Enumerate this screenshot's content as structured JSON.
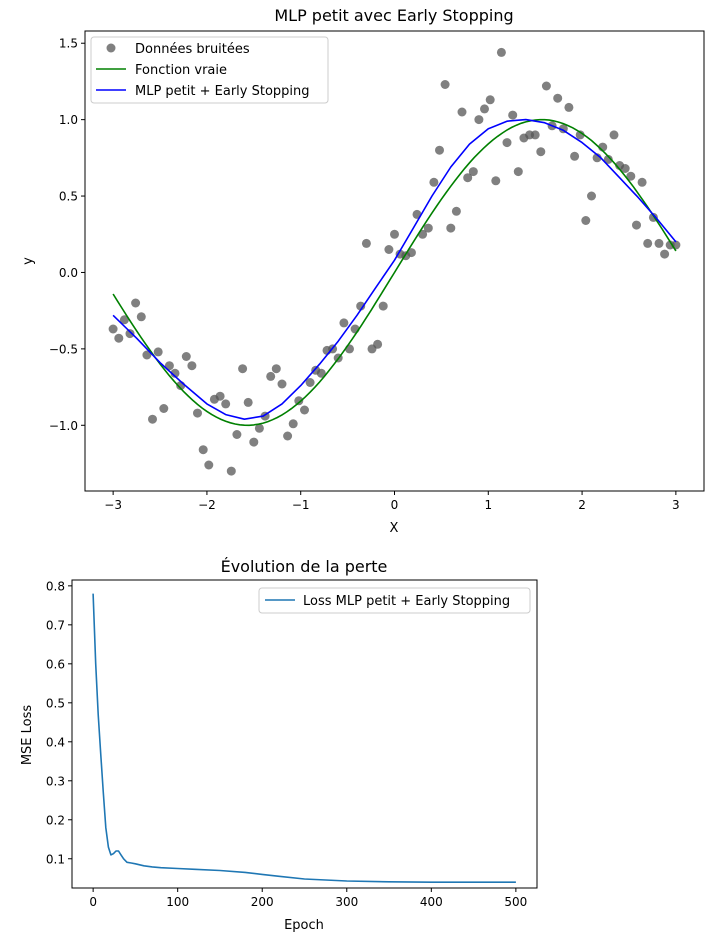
{
  "chart_data": [
    {
      "type": "scatter",
      "title": "MLP petit avec Early Stopping",
      "xlabel": "X",
      "ylabel": "y",
      "xlim": [
        -3.3,
        3.3
      ],
      "ylim": [
        -1.43,
        1.58
      ],
      "xticks": [
        -3,
        -2,
        -1,
        0,
        1,
        2,
        3
      ],
      "xtick_labels": [
        "−3",
        "−2",
        "−1",
        "0",
        "1",
        "2",
        "3"
      ],
      "yticks": [
        -1.0,
        -0.5,
        0.0,
        0.5,
        1.0,
        1.5
      ],
      "ytick_labels": [
        "−1.0",
        "−0.5",
        "0.0",
        "0.5",
        "1.0",
        "1.5"
      ],
      "legend_position": "top-left",
      "colors": {
        "points": "#555555",
        "true_fn": "#008000",
        "mlp": "#0000ff"
      },
      "series": [
        {
          "name": "Données bruitées",
          "kind": "scatter",
          "x": [
            -3.0,
            -2.94,
            -2.88,
            -2.82,
            -2.76,
            -2.7,
            -2.64,
            -2.58,
            -2.52,
            -2.46,
            -2.4,
            -2.34,
            -2.28,
            -2.22,
            -2.16,
            -2.1,
            -2.04,
            -1.98,
            -1.92,
            -1.86,
            -1.8,
            -1.74,
            -1.68,
            -1.62,
            -1.56,
            -1.5,
            -1.44,
            -1.38,
            -1.32,
            -1.26,
            -1.2,
            -1.14,
            -1.08,
            -1.02,
            -0.96,
            -0.9,
            -0.84,
            -0.78,
            -0.72,
            -0.66,
            -0.6,
            -0.54,
            -0.48,
            -0.42,
            -0.36,
            -0.3,
            -0.24,
            -0.18,
            -0.12,
            -0.06,
            0.0,
            0.06,
            0.12,
            0.18,
            0.24,
            0.3,
            0.36,
            0.42,
            0.48,
            0.54,
            0.6,
            0.66,
            0.72,
            0.78,
            0.84,
            0.9,
            0.96,
            1.02,
            1.08,
            1.14,
            1.2,
            1.26,
            1.32,
            1.38,
            1.44,
            1.5,
            1.56,
            1.62,
            1.68,
            1.74,
            1.8,
            1.86,
            1.92,
            1.98,
            2.04,
            2.1,
            2.16,
            2.22,
            2.28,
            2.34,
            2.4,
            2.46,
            2.52,
            2.58,
            2.64,
            2.7,
            2.76,
            2.82,
            2.88,
            2.94,
            3.0
          ],
          "y": [
            -0.37,
            -0.43,
            -0.31,
            -0.4,
            -0.2,
            -0.29,
            -0.54,
            -0.96,
            -0.52,
            -0.89,
            -0.61,
            -0.66,
            -0.74,
            -0.55,
            -0.61,
            -0.92,
            -1.16,
            -1.26,
            -0.83,
            -0.81,
            -0.86,
            -1.3,
            -1.06,
            -0.63,
            -0.85,
            -1.11,
            -1.02,
            -0.94,
            -0.68,
            -0.63,
            -0.73,
            -1.07,
            -0.99,
            -0.84,
            -0.9,
            -0.72,
            -0.64,
            -0.66,
            -0.51,
            -0.5,
            -0.56,
            -0.33,
            -0.5,
            -0.37,
            -0.22,
            0.19,
            -0.5,
            -0.47,
            -0.22,
            0.15,
            0.25,
            0.12,
            0.11,
            0.13,
            0.38,
            0.25,
            0.29,
            0.59,
            0.8,
            1.23,
            0.29,
            0.4,
            1.05,
            0.62,
            0.66,
            1.0,
            1.07,
            1.13,
            0.6,
            1.44,
            0.85,
            1.03,
            0.66,
            0.88,
            0.9,
            0.9,
            0.79,
            1.22,
            0.96,
            1.14,
            0.94,
            1.08,
            0.76,
            0.9,
            0.34,
            0.5,
            0.75,
            0.82,
            0.74,
            0.9,
            0.7,
            0.68,
            0.63,
            0.31,
            0.59,
            0.19,
            0.36,
            0.19,
            0.12,
            0.18,
            0.18
          ]
        },
        {
          "name": "Fonction vraie",
          "kind": "line",
          "function": "sin(x)"
        },
        {
          "name": "MLP petit + Early Stopping",
          "kind": "line",
          "x": [
            -3.0,
            -2.75,
            -2.5,
            -2.25,
            -2.0,
            -1.8,
            -1.6,
            -1.4,
            -1.2,
            -1.0,
            -0.8,
            -0.6,
            -0.4,
            -0.2,
            0.0,
            0.2,
            0.4,
            0.6,
            0.8,
            1.0,
            1.2,
            1.4,
            1.6,
            1.8,
            2.0,
            2.2,
            2.4,
            2.6,
            2.8,
            3.0
          ],
          "y": [
            -0.28,
            -0.43,
            -0.59,
            -0.73,
            -0.86,
            -0.93,
            -0.96,
            -0.94,
            -0.86,
            -0.74,
            -0.6,
            -0.45,
            -0.28,
            -0.1,
            0.08,
            0.29,
            0.5,
            0.69,
            0.84,
            0.94,
            0.99,
            1.0,
            0.98,
            0.93,
            0.85,
            0.75,
            0.62,
            0.49,
            0.35,
            0.2
          ]
        }
      ]
    },
    {
      "type": "line",
      "title": "Évolution de la perte",
      "xlabel": "Epoch",
      "ylabel": "MSE Loss",
      "xlim": [
        -25,
        525
      ],
      "ylim": [
        0.025,
        0.815
      ],
      "xticks": [
        0,
        100,
        200,
        300,
        400,
        500
      ],
      "xtick_labels": [
        "0",
        "100",
        "200",
        "300",
        "400",
        "500"
      ],
      "yticks": [
        0.1,
        0.2,
        0.3,
        0.4,
        0.5,
        0.6,
        0.7,
        0.8
      ],
      "ytick_labels": [
        "0.1",
        "0.2",
        "0.3",
        "0.4",
        "0.5",
        "0.6",
        "0.7",
        "0.8"
      ],
      "legend_position": "top-right",
      "colors": {
        "loss": "#1f77b4"
      },
      "series": [
        {
          "name": "Loss MLP petit + Early Stopping",
          "x": [
            0,
            3,
            6,
            9,
            12,
            15,
            18,
            21,
            24,
            27,
            30,
            33,
            36,
            40,
            45,
            50,
            60,
            70,
            80,
            100,
            120,
            150,
            180,
            200,
            220,
            250,
            300,
            350,
            400,
            450,
            500
          ],
          "y": [
            0.78,
            0.6,
            0.47,
            0.37,
            0.27,
            0.18,
            0.13,
            0.11,
            0.113,
            0.12,
            0.12,
            0.11,
            0.1,
            0.091,
            0.089,
            0.087,
            0.082,
            0.079,
            0.077,
            0.075,
            0.073,
            0.07,
            0.065,
            0.06,
            0.055,
            0.048,
            0.043,
            0.041,
            0.04,
            0.04,
            0.04
          ]
        }
      ]
    }
  ]
}
